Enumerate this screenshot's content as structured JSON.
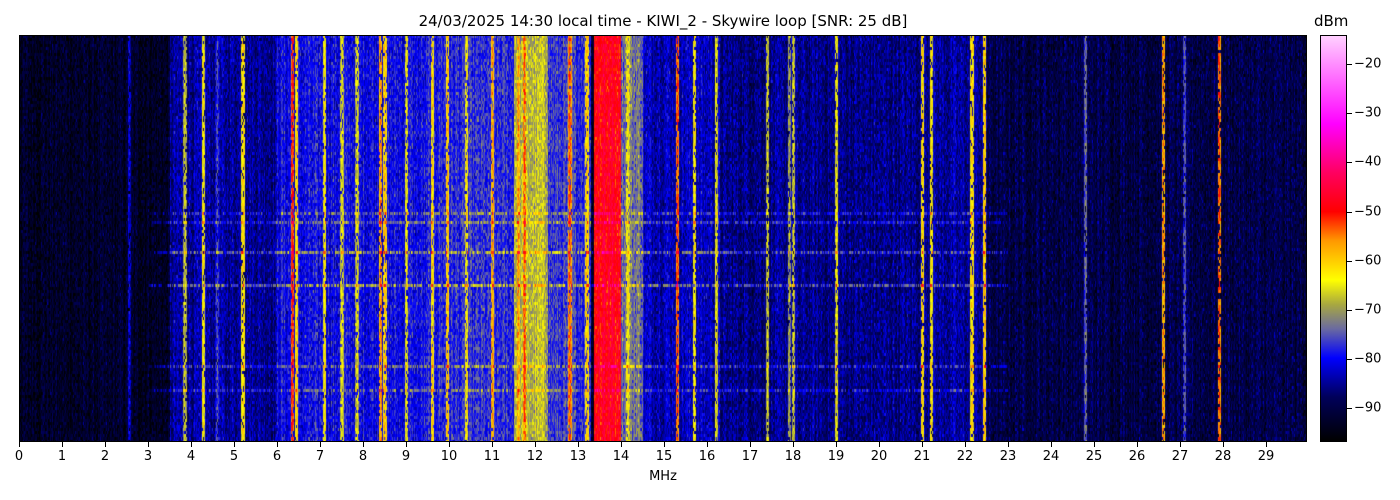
{
  "chart_data": {
    "type": "heatmap",
    "title": "24/03/2025 14:30 local time - KIWI_2 - Skywire loop [SNR: 25 dB]",
    "xlabel": "MHz",
    "ylabel": "",
    "xlim": [
      0,
      29.95
    ],
    "x_ticks": [
      "0",
      "1",
      "2",
      "3",
      "4",
      "5",
      "6",
      "7",
      "8",
      "9",
      "10",
      "11",
      "12",
      "13",
      "14",
      "15",
      "16",
      "17",
      "18",
      "19",
      "20",
      "21",
      "22",
      "23",
      "24",
      "25",
      "26",
      "27",
      "28",
      "29"
    ],
    "colorbar": {
      "label": "dBm",
      "range": [
        -97,
        -14
      ],
      "ticks": [
        "−20",
        "−30",
        "−40",
        "−50",
        "−60",
        "−70",
        "−80",
        "−90"
      ],
      "tick_values": [
        -20,
        -30,
        -40,
        -50,
        -60,
        -70,
        -80,
        -90
      ],
      "colormap": [
        {
          "value": -97,
          "color": "#000000"
        },
        {
          "value": -88,
          "color": "#00005a"
        },
        {
          "value": -80,
          "color": "#0000ff"
        },
        {
          "value": -74,
          "color": "#6a6aa0"
        },
        {
          "value": -69,
          "color": "#a8a840"
        },
        {
          "value": -64,
          "color": "#ffff00"
        },
        {
          "value": -56,
          "color": "#ff9900"
        },
        {
          "value": -50,
          "color": "#ff0000"
        },
        {
          "value": -42,
          "color": "#ff0060"
        },
        {
          "value": -32,
          "color": "#ff00ff"
        },
        {
          "value": -14,
          "color": "#ffd0ff"
        }
      ]
    },
    "noise_floor_bands": [
      {
        "from": 0,
        "to": 3.5,
        "dbm": -93
      },
      {
        "from": 3.5,
        "to": 6,
        "dbm": -85
      },
      {
        "from": 6,
        "to": 9.5,
        "dbm": -80
      },
      {
        "from": 9.5,
        "to": 11.5,
        "dbm": -78
      },
      {
        "from": 11.5,
        "to": 12.3,
        "dbm": -68
      },
      {
        "from": 12.3,
        "to": 13.3,
        "dbm": -77
      },
      {
        "from": 13.35,
        "to": 14.0,
        "dbm": -48
      },
      {
        "from": 14.0,
        "to": 14.5,
        "dbm": -73
      },
      {
        "from": 14.5,
        "to": 16.3,
        "dbm": -83
      },
      {
        "from": 16.3,
        "to": 21,
        "dbm": -86
      },
      {
        "from": 21,
        "to": 22.5,
        "dbm": -85
      },
      {
        "from": 22.5,
        "to": 30,
        "dbm": -90
      }
    ],
    "signals": [
      {
        "mhz": 2.55,
        "dbm": -80
      },
      {
        "mhz": 3.85,
        "dbm": -66
      },
      {
        "mhz": 4.27,
        "dbm": -62
      },
      {
        "mhz": 4.6,
        "dbm": -75
      },
      {
        "mhz": 5.2,
        "dbm": -60
      },
      {
        "mhz": 6.35,
        "dbm": -50
      },
      {
        "mhz": 6.45,
        "dbm": -60
      },
      {
        "mhz": 7.1,
        "dbm": -62
      },
      {
        "mhz": 7.5,
        "dbm": -64
      },
      {
        "mhz": 7.85,
        "dbm": -64
      },
      {
        "mhz": 8.4,
        "dbm": -55
      },
      {
        "mhz": 8.5,
        "dbm": -58
      },
      {
        "mhz": 9.0,
        "dbm": -64
      },
      {
        "mhz": 9.6,
        "dbm": -60
      },
      {
        "mhz": 9.95,
        "dbm": -58
      },
      {
        "mhz": 10.4,
        "dbm": -62
      },
      {
        "mhz": 11.0,
        "dbm": -56
      },
      {
        "mhz": 11.6,
        "dbm": -55
      },
      {
        "mhz": 11.75,
        "dbm": -52
      },
      {
        "mhz": 12.8,
        "dbm": -52
      },
      {
        "mhz": 13.2,
        "dbm": -58
      },
      {
        "mhz": 13.6,
        "dbm": -45
      },
      {
        "mhz": 13.8,
        "dbm": -46
      },
      {
        "mhz": 14.15,
        "dbm": -62
      },
      {
        "mhz": 15.3,
        "dbm": -52
      },
      {
        "mhz": 15.7,
        "dbm": -62
      },
      {
        "mhz": 16.2,
        "dbm": -64
      },
      {
        "mhz": 17.4,
        "dbm": -66
      },
      {
        "mhz": 17.9,
        "dbm": -68
      },
      {
        "mhz": 18.0,
        "dbm": -66
      },
      {
        "mhz": 19.0,
        "dbm": -64
      },
      {
        "mhz": 21.0,
        "dbm": -60
      },
      {
        "mhz": 21.2,
        "dbm": -62
      },
      {
        "mhz": 22.15,
        "dbm": -60
      },
      {
        "mhz": 22.45,
        "dbm": -58
      },
      {
        "mhz": 24.8,
        "dbm": -72
      },
      {
        "mhz": 26.6,
        "dbm": -55
      },
      {
        "mhz": 27.1,
        "dbm": -74
      },
      {
        "mhz": 27.9,
        "dbm": -52
      }
    ]
  }
}
